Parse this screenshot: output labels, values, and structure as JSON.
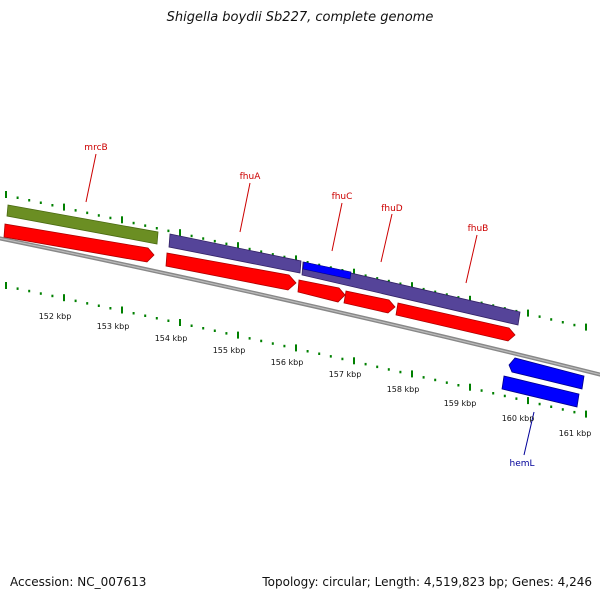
{
  "title": "Shigella boydii Sb227, complete genome",
  "footer": {
    "accession": "Accession: NC_007613",
    "summary": "Topology: circular; Length: 4,519,823 bp; Genes: 4,246"
  },
  "colors": {
    "cds_red": "#ff0000",
    "feature_purple": "#554499",
    "feature_olive": "#6b8e23",
    "feature_blue": "#0000ff",
    "backbone": "#888888",
    "tick_green": "#008000",
    "label_red": "#cc0000",
    "label_blue": "#000099"
  },
  "kbp_labels": [
    "152 kbp",
    "153 kbp",
    "154 kbp",
    "155 kbp",
    "156 kbp",
    "157 kbp",
    "158 kbp",
    "159 kbp",
    "160 kbp",
    "161 kbp"
  ],
  "gene_labels": [
    {
      "name": "mrcB",
      "color": "red"
    },
    {
      "name": "fhuA",
      "color": "red"
    },
    {
      "name": "fhuC",
      "color": "red"
    },
    {
      "name": "fhuD",
      "color": "red"
    },
    {
      "name": "fhuB",
      "color": "red"
    },
    {
      "name": "hemL",
      "color": "blue"
    }
  ]
}
